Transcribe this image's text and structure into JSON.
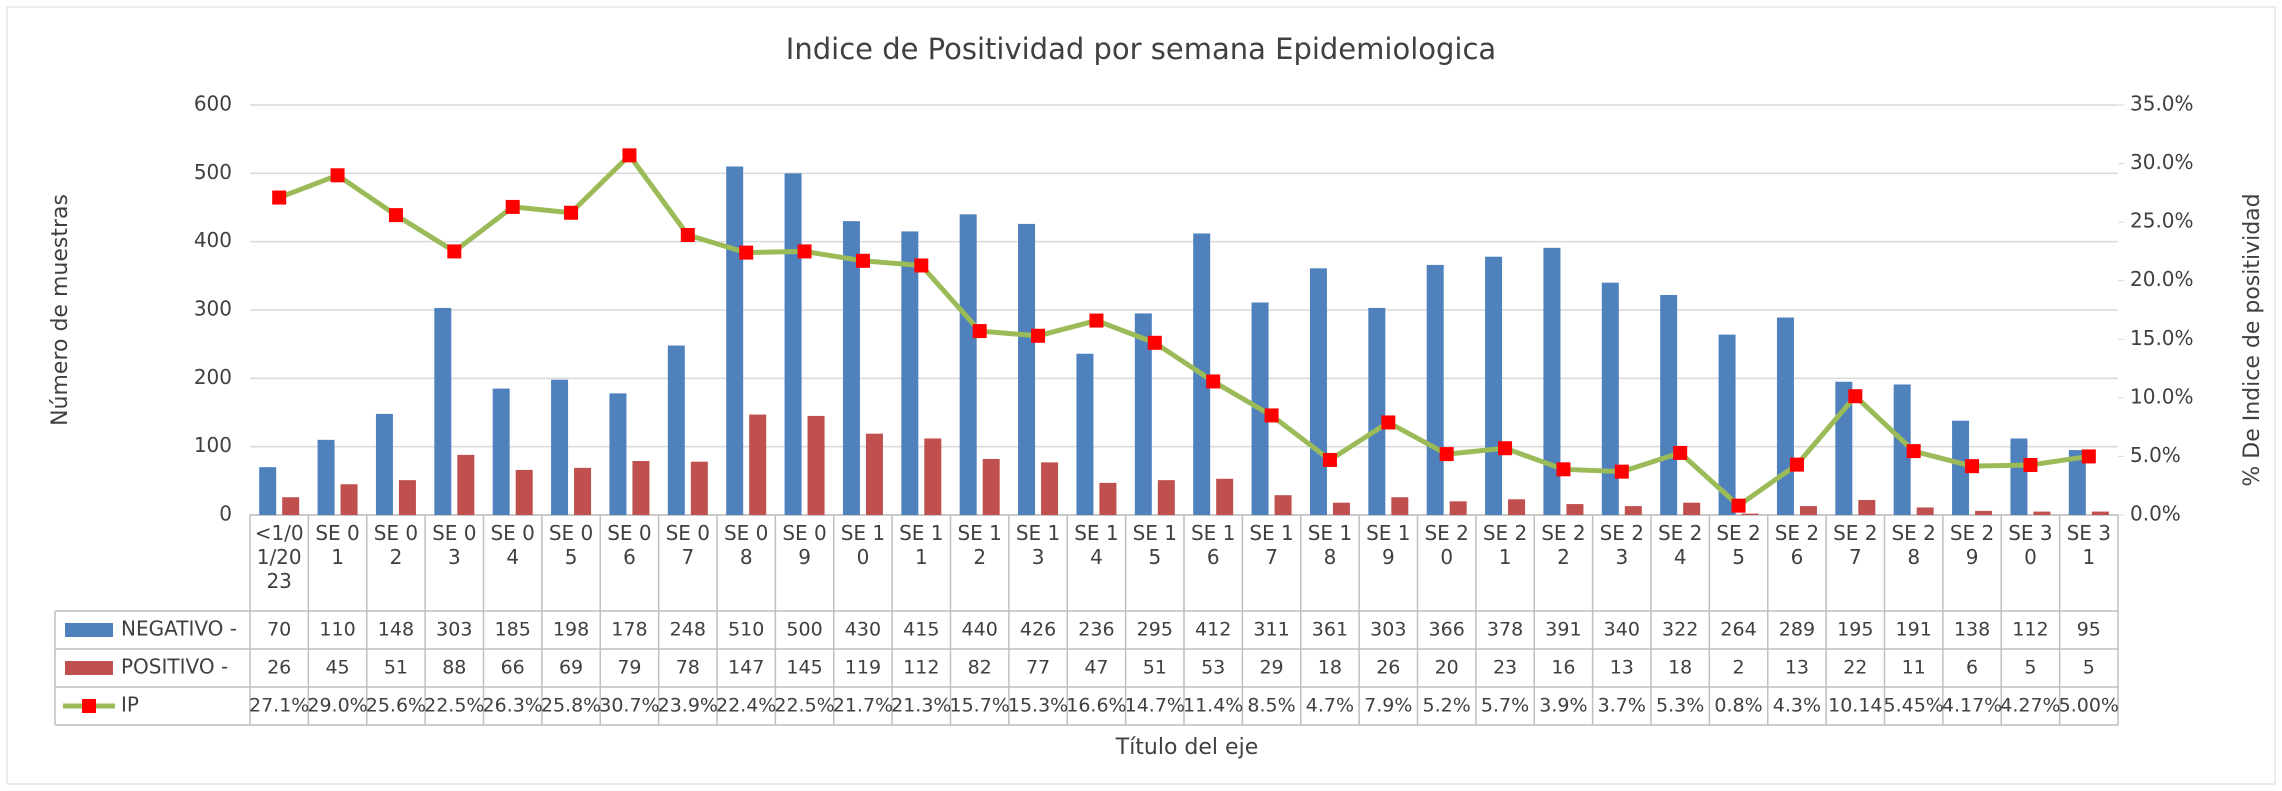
{
  "chart_data": {
    "type": "bar-line",
    "title": "Indice de Positividad por semana Epidemiologica",
    "y_label": "Número de muestras",
    "y2_label": "% De Indice de positividad",
    "x_label": "Título del eje",
    "categories": [
      "<1/01/2023",
      "SE 01",
      "SE 02",
      "SE 03",
      "SE 04",
      "SE 05",
      "SE 06",
      "SE 07",
      "SE 08",
      "SE 09",
      "SE 10",
      "SE 11",
      "SE 12",
      "SE 13",
      "SE 14",
      "SE 15",
      "SE 16",
      "SE 17",
      "SE 18",
      "SE 19",
      "SE 20",
      "SE 21",
      "SE 22",
      "SE 23",
      "SE 24",
      "SE 25",
      "SE 26",
      "SE 27",
      "SE 28",
      "SE 29",
      "SE 30",
      "SE 31"
    ],
    "series": [
      {
        "name": "NEGATIVO -",
        "type": "bar",
        "color": "#4f81bd",
        "values": [
          70,
          110,
          148,
          303,
          185,
          198,
          178,
          248,
          510,
          500,
          430,
          415,
          440,
          426,
          236,
          295,
          412,
          311,
          361,
          303,
          366,
          378,
          391,
          340,
          322,
          264,
          289,
          195,
          191,
          138,
          112,
          95
        ]
      },
      {
        "name": "POSITIVO -",
        "type": "bar",
        "color": "#c0504d",
        "values": [
          26,
          45,
          51,
          88,
          66,
          69,
          79,
          78,
          147,
          145,
          119,
          112,
          82,
          77,
          47,
          51,
          53,
          29,
          18,
          26,
          20,
          23,
          16,
          13,
          18,
          2,
          13,
          22,
          11,
          6,
          5,
          5
        ]
      },
      {
        "name": "IP",
        "type": "line",
        "axis": "y2",
        "color": "#9bbb59",
        "marker_color": "#ff0000",
        "values": [
          27.1,
          29.0,
          25.6,
          22.5,
          26.3,
          25.8,
          30.7,
          23.9,
          22.4,
          22.5,
          21.7,
          21.3,
          15.7,
          15.3,
          16.6,
          14.7,
          11.4,
          8.5,
          4.7,
          7.9,
          5.2,
          5.7,
          3.9,
          3.7,
          5.3,
          0.8,
          4.3,
          10.14,
          5.45,
          4.17,
          4.27,
          5.0
        ],
        "value_labels": [
          "27.1%",
          "29.0%",
          "25.6%",
          "22.5%",
          "26.3%",
          "25.8%",
          "30.7%",
          "23.9%",
          "22.4%",
          "22.5%",
          "21.7%",
          "21.3%",
          "15.7%",
          "15.3%",
          "16.6%",
          "14.7%",
          "11.4%",
          "8.5%",
          "4.7%",
          "7.9%",
          "5.2%",
          "5.7%",
          "3.9%",
          "3.7%",
          "5.3%",
          "0.8%",
          "4.3%",
          "10.14",
          "5.45%",
          "4.17%",
          "4.27%",
          "5.00%"
        ]
      }
    ],
    "ylim": [
      0,
      600
    ],
    "yticks": [
      0,
      100,
      200,
      300,
      400,
      500,
      600
    ],
    "y2lim": [
      0,
      35
    ],
    "y2ticks": [
      {
        "value": 0,
        "label": "0.0%"
      },
      {
        "value": 5,
        "label": "5.0%"
      },
      {
        "value": 10,
        "label": "10.0%"
      },
      {
        "value": 15,
        "label": "15.0%"
      },
      {
        "value": 20,
        "label": "20.0%"
      },
      {
        "value": 25,
        "label": "25.0%"
      },
      {
        "value": 30,
        "label": "30.0%"
      },
      {
        "value": 35,
        "label": "35.0%"
      }
    ],
    "grid": true
  }
}
